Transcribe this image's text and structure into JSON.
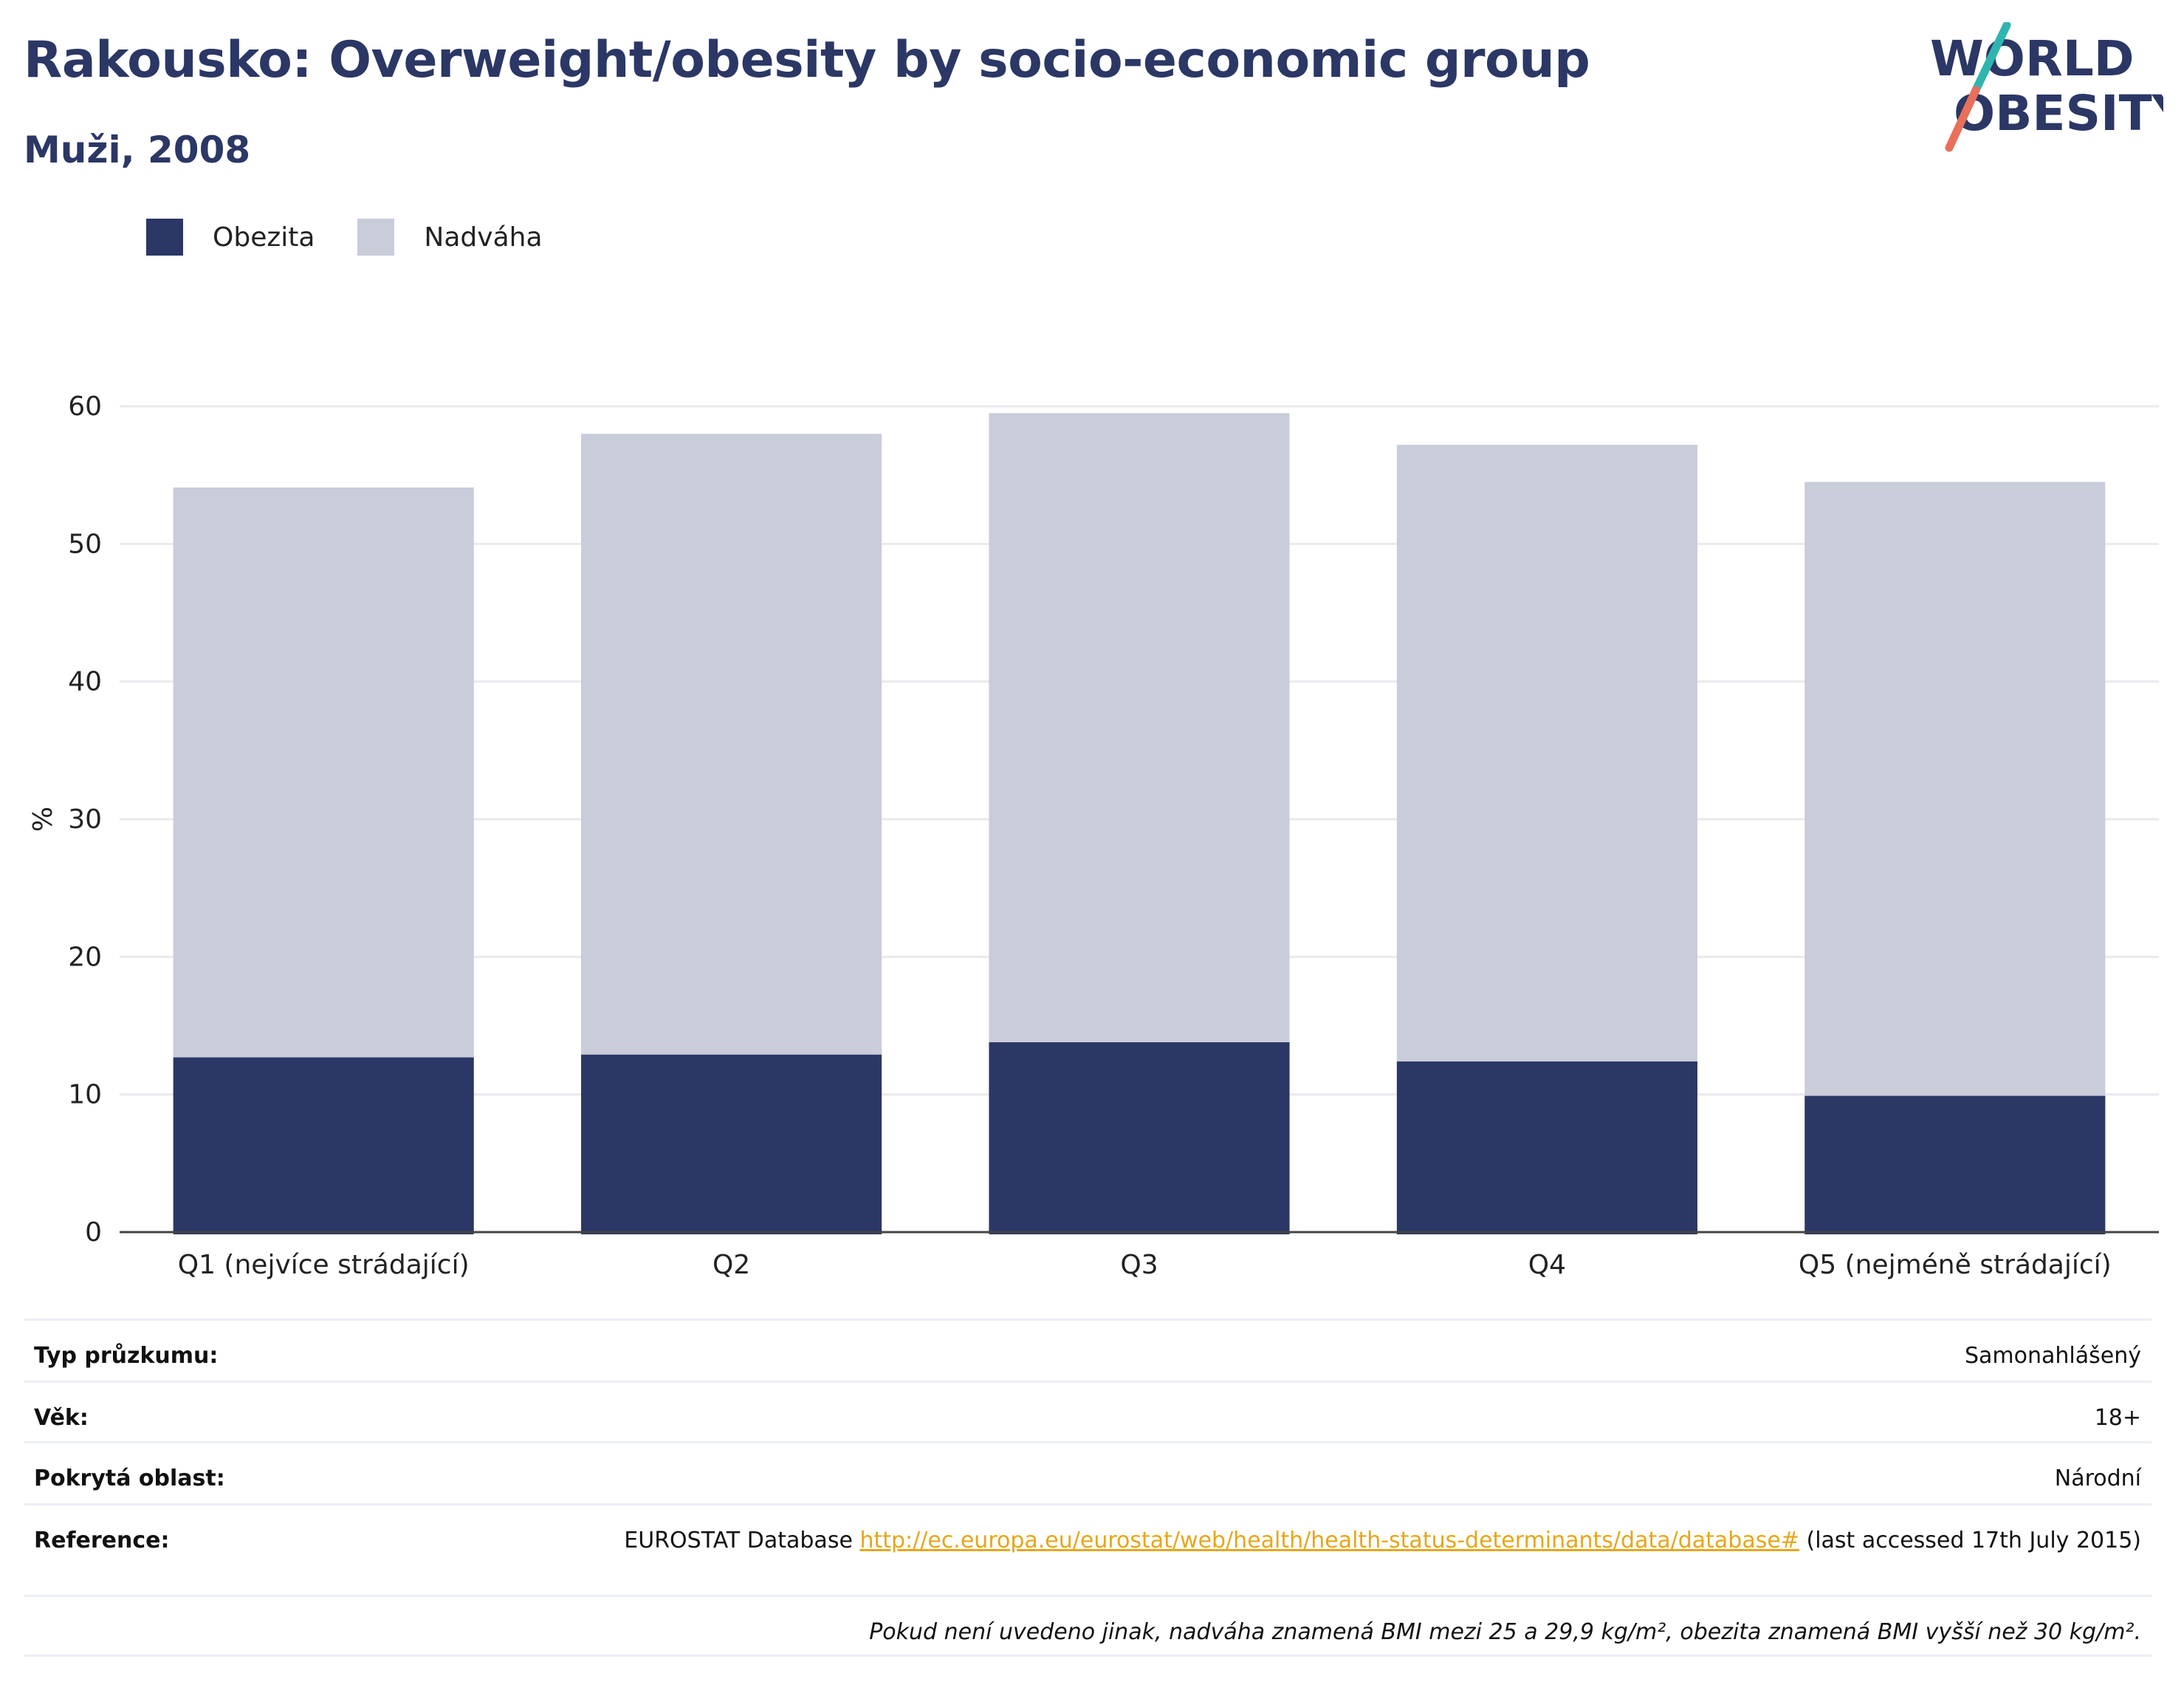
{
  "header": {
    "title": "Rakousko: Overweight/obesity by socio-economic group",
    "subtitle": "Muži, 2008"
  },
  "logo": {
    "line1": "WORLD",
    "line2": "OBESITY"
  },
  "legend": [
    {
      "label": "Obezita",
      "color": "#2b3765"
    },
    {
      "label": "Nadváha",
      "color": "#c9ccd9"
    }
  ],
  "chart_data": {
    "type": "bar",
    "stacked": true,
    "categories": [
      "Q1 (nejvíce strádající)",
      "Q2",
      "Q3",
      "Q4",
      "Q5 (nejméně strádající)"
    ],
    "series": [
      {
        "name": "Obezita",
        "values": [
          12.7,
          12.9,
          13.8,
          12.4,
          9.9
        ],
        "color": "#2b3765"
      },
      {
        "name": "Nadváha",
        "values": [
          41.4,
          45.1,
          45.7,
          44.8,
          44.6
        ],
        "color": "#c9ccd9"
      }
    ],
    "ylabel": "%",
    "ylim": [
      0,
      60
    ],
    "yticks": [
      0,
      10,
      20,
      30,
      40,
      50,
      60
    ],
    "grid": true,
    "legend_position": "top-left"
  },
  "info": {
    "rows": [
      {
        "label": "Typ průzkumu:",
        "value": "Samonahlášený"
      },
      {
        "label": "Věk:",
        "value": "18+"
      },
      {
        "label": "Pokrytá oblast:",
        "value": "Národní"
      }
    ],
    "reference": {
      "label": "Reference:",
      "prefix": "EUROSTAT Database ",
      "link": "http://ec.europa.eu/eurostat/web/health/health-status-determinants/data/database#",
      "suffix": " (last accessed 17th July 2015)"
    },
    "note": "Pokud není uvedeno jinak, nadváha znamená BMI mezi 25 a 29,9 kg/m², obezita znamená BMI vyšší než 30 kg/m²."
  }
}
